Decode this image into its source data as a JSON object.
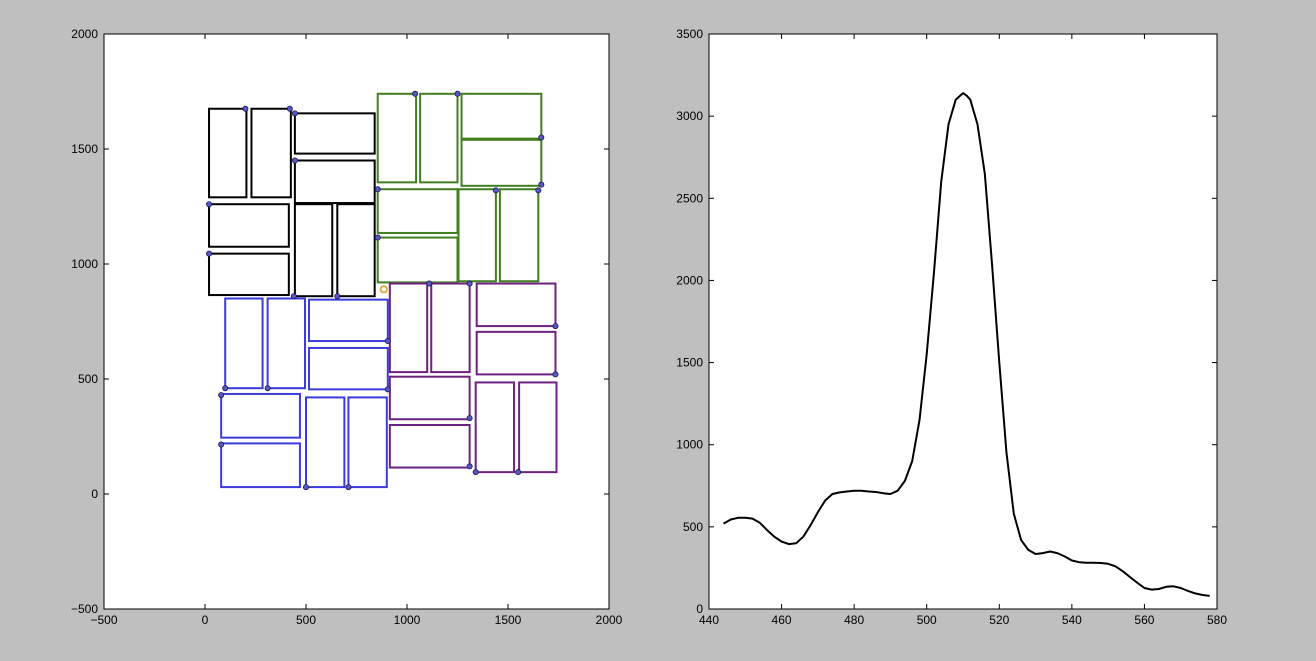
{
  "chart_data": [
    {
      "type": "scatter",
      "xlim": [
        -500,
        2000
      ],
      "ylim": [
        -500,
        2000
      ],
      "xticks": [
        -500,
        0,
        500,
        1000,
        1500,
        2000
      ],
      "yticks": [
        -500,
        0,
        500,
        1000,
        1500,
        2000
      ],
      "xtick_labels": [
        "−500",
        "0",
        "500",
        "1000",
        "1500",
        "2000"
      ],
      "ytick_labels": [
        "−500",
        "0",
        "500",
        "1000",
        "1500",
        "2000"
      ],
      "grid": false,
      "groups": [
        {
          "color": "#000000",
          "rects": [
            [
              20,
              1290,
              205,
              1675
            ],
            [
              230,
              1290,
              425,
              1675
            ],
            [
              445,
              1480,
              840,
              1655
            ],
            [
              445,
              1265,
              840,
              1450
            ],
            [
              20,
              1075,
              415,
              1260
            ],
            [
              20,
              865,
              415,
              1045
            ],
            [
              445,
              860,
              630,
              1260
            ],
            [
              655,
              860,
              840,
              1260
            ]
          ],
          "points": [
            [
              200,
              1675
            ],
            [
              420,
              1675
            ],
            [
              445,
              1655
            ],
            [
              445,
              1450
            ],
            [
              20,
              1260
            ],
            [
              20,
              1045
            ],
            [
              440,
              860
            ],
            [
              655,
              860
            ]
          ]
        },
        {
          "color": "#3f7f1f",
          "rects": [
            [
              855,
              1355,
              1045,
              1740
            ],
            [
              1065,
              1355,
              1250,
              1740
            ],
            [
              1270,
              1545,
              1665,
              1740
            ],
            [
              1270,
              1340,
              1665,
              1540
            ],
            [
              855,
              1135,
              1250,
              1325
            ],
            [
              855,
              920,
              1250,
              1115
            ],
            [
              1255,
              925,
              1440,
              1325
            ],
            [
              1460,
              925,
              1650,
              1325
            ]
          ],
          "points": [
            [
              1040,
              1740
            ],
            [
              1250,
              1740
            ],
            [
              1665,
              1550
            ],
            [
              1665,
              1345
            ],
            [
              855,
              1325
            ],
            [
              1440,
              1320
            ],
            [
              1650,
              1320
            ],
            [
              855,
              1115
            ]
          ]
        },
        {
          "color": "#3b3bdc",
          "rects": [
            [
              100,
              460,
              285,
              850
            ],
            [
              310,
              460,
              495,
              850
            ],
            [
              515,
              665,
              905,
              845
            ],
            [
              515,
              455,
              905,
              635
            ],
            [
              80,
              245,
              470,
              435
            ],
            [
              80,
              30,
              470,
              220
            ],
            [
              500,
              30,
              690,
              420
            ],
            [
              710,
              30,
              900,
              420
            ]
          ],
          "points": [
            [
              100,
              460
            ],
            [
              310,
              460
            ],
            [
              905,
              665
            ],
            [
              905,
              455
            ],
            [
              80,
              430
            ],
            [
              80,
              215
            ],
            [
              500,
              30
            ],
            [
              710,
              30
            ]
          ]
        },
        {
          "color": "#6e2180",
          "rects": [
            [
              915,
              530,
              1100,
              915
            ],
            [
              1120,
              530,
              1310,
              915
            ],
            [
              1345,
              730,
              1735,
              915
            ],
            [
              1345,
              520,
              1735,
              705
            ],
            [
              915,
              325,
              1310,
              510
            ],
            [
              915,
              115,
              1310,
              300
            ],
            [
              1340,
              95,
              1530,
              485
            ],
            [
              1555,
              95,
              1740,
              485
            ]
          ],
          "points": [
            [
              1110,
              915
            ],
            [
              1310,
              915
            ],
            [
              1735,
              730
            ],
            [
              1735,
              520
            ],
            [
              1310,
              330
            ],
            [
              1310,
              120
            ],
            [
              1340,
              95
            ],
            [
              1550,
              95
            ]
          ]
        }
      ],
      "marker": {
        "x": 885,
        "y": 890,
        "color": "#e8a33a"
      }
    },
    {
      "type": "line",
      "xlim": [
        440,
        580
      ],
      "ylim": [
        0,
        3500
      ],
      "xticks": [
        440,
        460,
        480,
        500,
        520,
        540,
        560,
        580
      ],
      "yticks": [
        0,
        500,
        1000,
        1500,
        2000,
        2500,
        3000,
        3500
      ],
      "xtick_labels": [
        "440",
        "460",
        "480",
        "500",
        "520",
        "540",
        "560",
        "580"
      ],
      "ytick_labels": [
        "0",
        "500",
        "1000",
        "1500",
        "2000",
        "2500",
        "3000",
        "3500"
      ],
      "grid": false,
      "color": "#000000",
      "x": [
        444,
        446,
        448,
        450,
        452,
        454,
        456,
        458,
        460,
        462,
        464,
        466,
        468,
        470,
        472,
        474,
        476,
        478,
        480,
        482,
        484,
        486,
        488,
        490,
        492,
        494,
        496,
        498,
        500,
        502,
        504,
        506,
        508,
        510,
        511,
        512,
        514,
        516,
        518,
        520,
        522,
        524,
        526,
        528,
        530,
        532,
        534,
        536,
        538,
        540,
        542,
        544,
        546,
        548,
        550,
        552,
        554,
        556,
        558,
        560,
        562,
        564,
        566,
        568,
        570,
        572,
        574,
        576,
        578
      ],
      "y": [
        520,
        545,
        555,
        555,
        550,
        525,
        480,
        440,
        410,
        395,
        400,
        440,
        510,
        590,
        660,
        700,
        710,
        715,
        720,
        720,
        715,
        712,
        705,
        700,
        720,
        780,
        900,
        1150,
        1550,
        2050,
        2600,
        2950,
        3100,
        3140,
        3125,
        3100,
        2950,
        2650,
        2100,
        1500,
        950,
        580,
        420,
        360,
        335,
        340,
        350,
        340,
        320,
        295,
        285,
        282,
        282,
        280,
        275,
        260,
        230,
        195,
        160,
        128,
        118,
        122,
        135,
        138,
        128,
        110,
        95,
        85,
        80
      ]
    }
  ]
}
